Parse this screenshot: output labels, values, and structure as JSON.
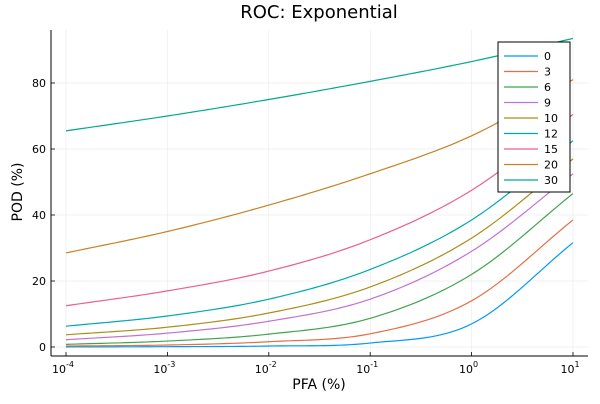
{
  "chart_data": {
    "type": "line",
    "title": "ROC: Exponential",
    "xlabel": "PFA (%)",
    "ylabel": "POD (%)",
    "x_scale": "log10",
    "xlim": [
      0.0001,
      10
    ],
    "ylim": [
      -2,
      96
    ],
    "x_ticks": [
      {
        "value": 0.0001,
        "base": "10",
        "exp": "-4"
      },
      {
        "value": 0.001,
        "base": "10",
        "exp": "-3"
      },
      {
        "value": 0.01,
        "base": "10",
        "exp": "-2"
      },
      {
        "value": 0.1,
        "base": "10",
        "exp": "-1"
      },
      {
        "value": 1,
        "base": "10",
        "exp": "0"
      },
      {
        "value": 10,
        "base": "10",
        "exp": "1"
      }
    ],
    "y_ticks": [
      {
        "value": 0,
        "label": "0"
      },
      {
        "value": 20,
        "label": "20"
      },
      {
        "value": 40,
        "label": "40"
      },
      {
        "value": 60,
        "label": "60"
      },
      {
        "value": 80,
        "label": "80"
      }
    ],
    "grid": true,
    "legend_position": "top-right",
    "x": [
      0.0001,
      0.001,
      0.01,
      0.1,
      1,
      10
    ],
    "series": [
      {
        "name": "0",
        "color": "#009AFA",
        "values": [
          0.01,
          0.1,
          0.3,
          1.2,
          7.0,
          31.6
        ]
      },
      {
        "name": "3",
        "color": "#E36F47",
        "values": [
          0.3,
          0.6,
          1.6,
          4.0,
          14.0,
          38.5
        ]
      },
      {
        "name": "6",
        "color": "#3EA44E",
        "values": [
          0.8,
          1.8,
          3.9,
          8.7,
          22.0,
          46.5
        ]
      },
      {
        "name": "9",
        "color": "#C371D2",
        "values": [
          2.2,
          4.2,
          7.8,
          14.5,
          29.0,
          52.5
        ]
      },
      {
        "name": "10",
        "color": "#AC8D18",
        "values": [
          3.7,
          6.0,
          10.3,
          18.2,
          33.0,
          57.0
        ]
      },
      {
        "name": "12",
        "color": "#00A9AD",
        "values": [
          6.3,
          9.4,
          14.5,
          23.5,
          38.5,
          62.5
        ]
      },
      {
        "name": "15",
        "color": "#ED5D92",
        "values": [
          12.5,
          17.0,
          23.0,
          32.5,
          47.5,
          70.5
        ]
      },
      {
        "name": "20",
        "color": "#C68225",
        "values": [
          28.5,
          35.0,
          43.0,
          52.5,
          64.0,
          81.0
        ]
      },
      {
        "name": "30",
        "color": "#00A98D",
        "values": [
          65.5,
          70.0,
          75.0,
          80.5,
          86.5,
          93.5
        ]
      }
    ]
  }
}
